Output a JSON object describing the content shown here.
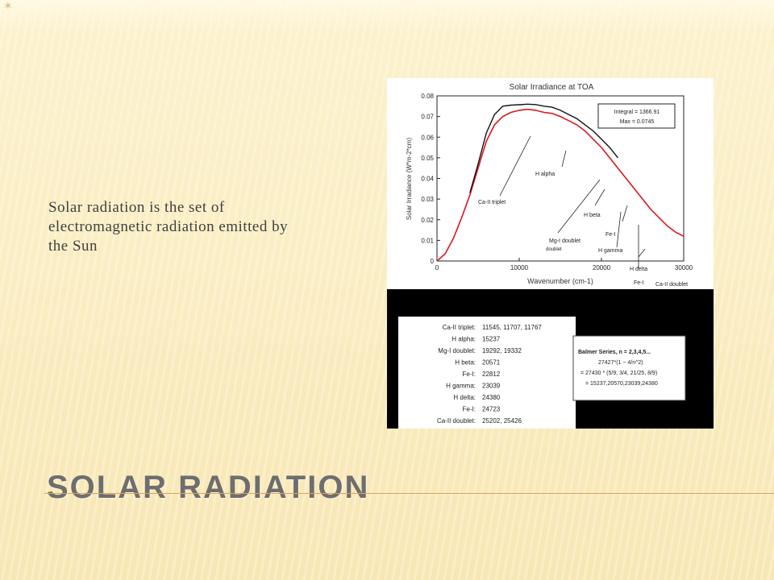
{
  "slide": {
    "title": "SOLAR RADIATION",
    "body_text": "Solar radiation is the set of electromagnetic radiation emitted by the Sun",
    "accent_color": "#e0a35a",
    "title_color": "#6e6e6e"
  },
  "figure": {
    "chart_title": "Solar Irradiance at TOA",
    "info_box": [
      "Integral = 1366.91",
      "Max = 0.0745"
    ],
    "table_rows": [
      {
        "label": "Ca-II triplet:",
        "value": "11545, 11707, 11767"
      },
      {
        "label": "H alpha:",
        "value": "15237"
      },
      {
        "label": "Mg-I doublet:",
        "value": "19292, 19332"
      },
      {
        "label": "H beta:",
        "value": "20571"
      },
      {
        "label": "Fe-I:",
        "value": "22812"
      },
      {
        "label": "H gamma:",
        "value": "23039"
      },
      {
        "label": "H delta:",
        "value": "24380"
      },
      {
        "label": "Fe-I:",
        "value": "24723"
      },
      {
        "label": "Ca-II doublet:",
        "value": "25202, 25426"
      }
    ],
    "balmer_box": [
      "Balmer Series, n = 2,3,4,5...",
      "27427*(1 − 4/n^2)",
      "= 27430 * (5/9, 3/4, 21/25, 8/9)",
      "= 15237,20570,23039,24380"
    ]
  },
  "chart_data": {
    "type": "line",
    "title": "Solar Irradiance at TOA",
    "xlabel": "Wavenumber (cm-1)",
    "ylabel": "Solar Irradiance (W*m-2*cm)",
    "xlim": [
      0,
      30000
    ],
    "ylim": [
      0,
      0.08
    ],
    "x_ticks": [
      "0",
      "10000",
      "20000",
      "30000"
    ],
    "y_ticks": [
      "0",
      "0.01",
      "0.02",
      "0.03",
      "0.04",
      "0.05",
      "0.06",
      "0.07",
      "0.08"
    ],
    "series": [
      {
        "color": "#d8181e",
        "x": [
          0,
          1000,
          2000,
          3000,
          4000,
          5000,
          6000,
          7000,
          8000,
          9000,
          10000,
          11000,
          12000,
          13000,
          14000,
          15000,
          16000,
          17000,
          18000,
          19000,
          20000,
          21000,
          22000,
          23000,
          24000,
          25000,
          26000,
          27000,
          28000,
          29000,
          30000
        ],
        "y": [
          0,
          0.0035,
          0.011,
          0.021,
          0.032,
          0.045,
          0.058,
          0.066,
          0.07,
          0.072,
          0.073,
          0.0735,
          0.073,
          0.072,
          0.0715,
          0.07,
          0.068,
          0.066,
          0.063,
          0.059,
          0.055,
          0.05,
          0.045,
          0.04,
          0.035,
          0.03,
          0.025,
          0.021,
          0.017,
          0.014,
          0.012
        ]
      },
      {
        "color": "#111111",
        "x": [
          4000,
          5000,
          6000,
          7000,
          8000,
          9000,
          10000,
          11000,
          12000,
          13000,
          14000,
          15000,
          16000,
          17000,
          18000,
          19000,
          20000,
          21000,
          22000
        ],
        "y": [
          0.033,
          0.047,
          0.062,
          0.071,
          0.075,
          0.0755,
          0.0757,
          0.076,
          0.0758,
          0.075,
          0.0745,
          0.073,
          0.071,
          0.069,
          0.066,
          0.063,
          0.059,
          0.055,
          0.05
        ]
      }
    ],
    "annotations": [
      "Ca-II triplet",
      "H alpha",
      "H beta",
      "Mg-I doublet",
      "H gamma",
      "Fe-I",
      "H delta",
      "Fe-I",
      "Ca-II doublet"
    ],
    "grid": false,
    "legend": "none"
  }
}
